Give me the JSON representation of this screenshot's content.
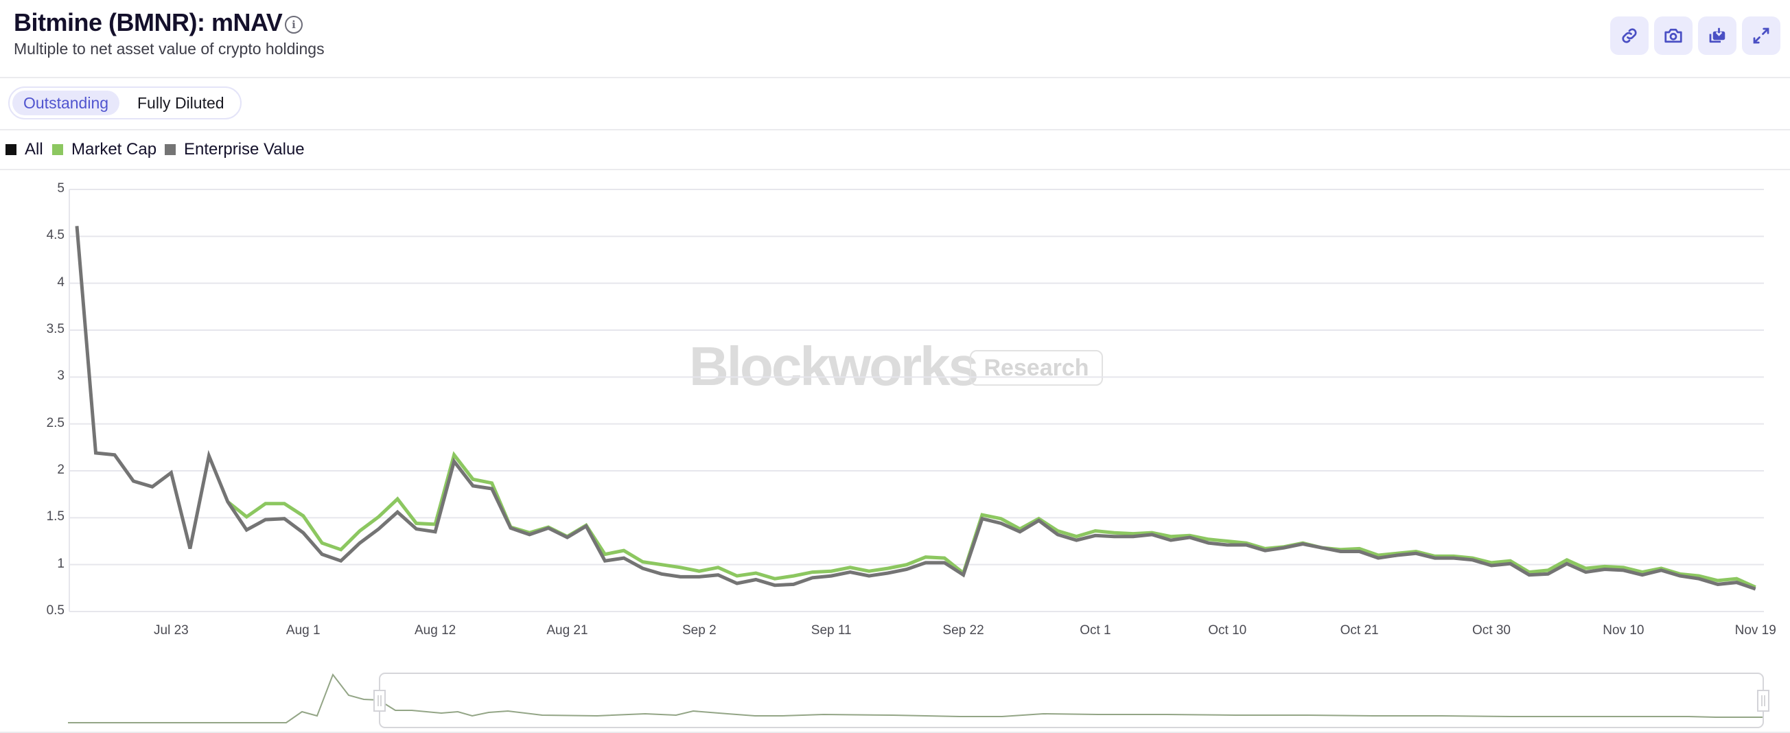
{
  "header": {
    "title": "Bitmine (BMNR): mNAV",
    "info_icon": "info-circle-icon",
    "subtitle": "Multiple to net asset value of crypto holdings",
    "toolbar": [
      {
        "name": "copy-link",
        "icon": "link-icon"
      },
      {
        "name": "screenshot",
        "icon": "camera-icon"
      },
      {
        "name": "download",
        "icon": "download-icon"
      },
      {
        "name": "fullscreen",
        "icon": "expand-icon"
      }
    ]
  },
  "toggle": {
    "options": [
      "Outstanding",
      "Fully Diluted"
    ],
    "selected": "Outstanding"
  },
  "legend": {
    "items": [
      {
        "label": "All",
        "color": "#111111"
      },
      {
        "label": "Market Cap",
        "color": "#8cc760"
      },
      {
        "label": "Enterprise Value",
        "color": "#747474"
      }
    ]
  },
  "watermark": {
    "brand": "Blockworks",
    "badge": "Research"
  },
  "colors": {
    "accent": "#5054cf",
    "accent_bg": "#ebebfc",
    "market_cap": "#8cc760",
    "enterprise_value": "#747474",
    "grid": "#e6e6ec",
    "navigator_line": "#93a586"
  },
  "chart_data": {
    "type": "line",
    "title": "Bitmine (BMNR): mNAV",
    "subtitle": "Multiple to net asset value of crypto holdings",
    "xlabel": "",
    "ylabel": "",
    "ylim": [
      0.5,
      5
    ],
    "yticks": [
      "0.5",
      "1",
      "1.5",
      "2",
      "2.5",
      "3",
      "3.5",
      "4",
      "4.5",
      "5"
    ],
    "xtick_labels": [
      {
        "label": "Jul 23",
        "index": 5
      },
      {
        "label": "Aug 1",
        "index": 12
      },
      {
        "label": "Aug 12",
        "index": 19
      },
      {
        "label": "Aug 21",
        "index": 26
      },
      {
        "label": "Sep 2",
        "index": 33
      },
      {
        "label": "Sep 11",
        "index": 40
      },
      {
        "label": "Sep 22",
        "index": 47
      },
      {
        "label": "Oct 1",
        "index": 54
      },
      {
        "label": "Oct 10",
        "index": 61
      },
      {
        "label": "Oct 21",
        "index": 68
      },
      {
        "label": "Oct 30",
        "index": 75
      },
      {
        "label": "Nov 10",
        "index": 82
      },
      {
        "label": "Nov 19",
        "index": 89
      }
    ],
    "grid": true,
    "legend_position": "top-left",
    "n_points": 90,
    "series": [
      {
        "name": "Market Cap",
        "color": "#8cc760",
        "start_index": 8,
        "values": [
          1.67,
          1.51,
          1.65,
          1.65,
          1.52,
          1.23,
          1.16,
          1.36,
          1.51,
          1.7,
          1.44,
          1.43,
          2.17,
          1.91,
          1.87,
          1.4,
          1.34,
          1.4,
          1.3,
          1.42,
          1.11,
          1.15,
          1.03,
          1.0,
          0.97,
          0.93,
          0.97,
          0.88,
          0.91,
          0.85,
          0.88,
          0.92,
          0.93,
          0.97,
          0.93,
          0.96,
          1.0,
          1.08,
          1.07,
          0.91,
          1.53,
          1.49,
          1.38,
          1.49,
          1.36,
          1.3,
          1.36,
          1.34,
          1.33,
          1.34,
          1.3,
          1.31,
          1.27,
          1.25,
          1.23,
          1.17,
          1.19,
          1.23,
          1.18,
          1.16,
          1.17,
          1.1,
          1.12,
          1.14,
          1.09,
          1.09,
          1.07,
          1.02,
          1.04,
          0.92,
          0.94,
          1.05,
          0.96,
          0.98,
          0.97,
          0.92,
          0.96,
          0.9,
          0.88,
          0.83,
          0.85,
          0.76
        ]
      },
      {
        "name": "Enterprise Value",
        "color": "#747474",
        "start_index": 0,
        "values": [
          4.61,
          2.19,
          2.17,
          1.89,
          1.83,
          1.98,
          1.17,
          2.16,
          1.67,
          1.37,
          1.48,
          1.49,
          1.34,
          1.11,
          1.04,
          1.23,
          1.38,
          1.56,
          1.38,
          1.35,
          2.1,
          1.84,
          1.81,
          1.39,
          1.32,
          1.39,
          1.29,
          1.41,
          1.04,
          1.07,
          0.96,
          0.9,
          0.87,
          0.87,
          0.89,
          0.8,
          0.84,
          0.78,
          0.79,
          0.86,
          0.88,
          0.92,
          0.88,
          0.91,
          0.95,
          1.02,
          1.02,
          0.89,
          1.49,
          1.44,
          1.35,
          1.47,
          1.32,
          1.26,
          1.31,
          1.3,
          1.3,
          1.32,
          1.26,
          1.29,
          1.23,
          1.21,
          1.21,
          1.15,
          1.18,
          1.22,
          1.18,
          1.14,
          1.14,
          1.07,
          1.1,
          1.12,
          1.07,
          1.07,
          1.05,
          0.99,
          1.01,
          0.89,
          0.9,
          1.01,
          0.92,
          0.95,
          0.94,
          0.89,
          0.94,
          0.88,
          0.85,
          0.79,
          0.81,
          0.74
        ]
      }
    ]
  },
  "navigator": {
    "range_start_x": 553,
    "range_end_x": 2569,
    "overview_points": [
      [
        99,
        1053
      ],
      [
        417,
        1053
      ],
      [
        440,
        1037
      ],
      [
        462,
        1043
      ],
      [
        485,
        983
      ],
      [
        508,
        1013
      ],
      [
        530,
        1019
      ],
      [
        552,
        1020
      ],
      [
        576,
        1035
      ],
      [
        600,
        1035
      ],
      [
        643,
        1039
      ],
      [
        667,
        1037
      ],
      [
        688,
        1043
      ],
      [
        712,
        1038
      ],
      [
        740,
        1036
      ],
      [
        790,
        1042
      ],
      [
        870,
        1043
      ],
      [
        940,
        1040
      ],
      [
        985,
        1042
      ],
      [
        1010,
        1036
      ],
      [
        1060,
        1040
      ],
      [
        1100,
        1043
      ],
      [
        1140,
        1043
      ],
      [
        1200,
        1041
      ],
      [
        1300,
        1042
      ],
      [
        1400,
        1044
      ],
      [
        1460,
        1044
      ],
      [
        1520,
        1040
      ],
      [
        1600,
        1041
      ],
      [
        1700,
        1041
      ],
      [
        1800,
        1042
      ],
      [
        1900,
        1042
      ],
      [
        2000,
        1043
      ],
      [
        2100,
        1043
      ],
      [
        2200,
        1044
      ],
      [
        2300,
        1044
      ],
      [
        2460,
        1044
      ],
      [
        2500,
        1045
      ],
      [
        2569,
        1045
      ]
    ]
  }
}
